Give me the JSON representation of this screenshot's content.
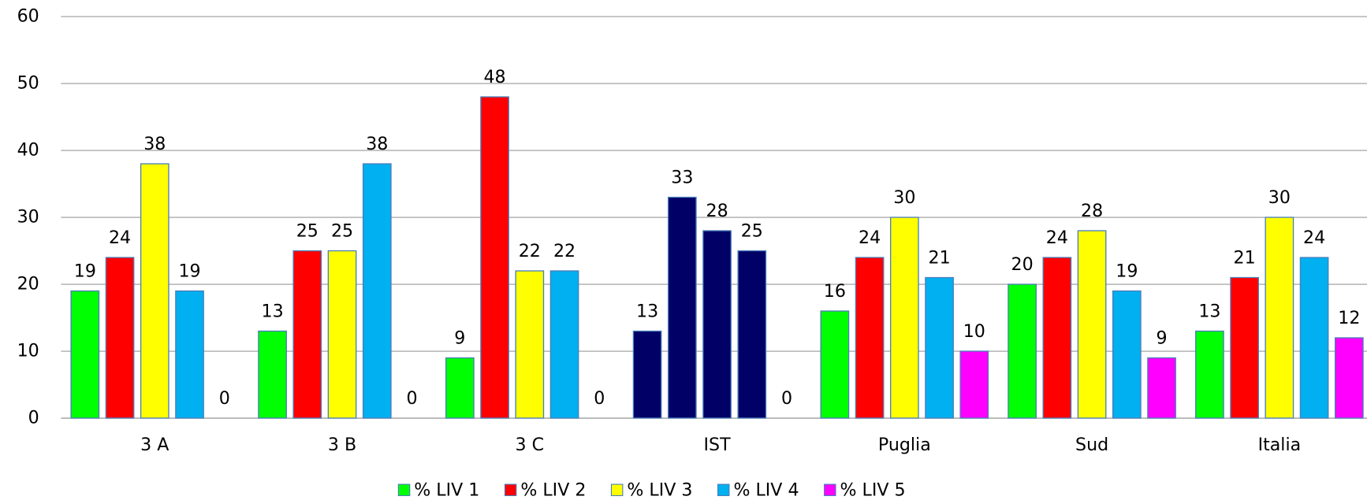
{
  "chart_data": {
    "type": "bar",
    "categories": [
      "3 A",
      "3 B",
      "3 C",
      "IST",
      "Puglia",
      "Sud",
      "Italia"
    ],
    "series": [
      {
        "name": "% LIV 1",
        "color": "#00ff00",
        "values": [
          19,
          13,
          9,
          13,
          16,
          20,
          13
        ]
      },
      {
        "name": "% LIV 2",
        "color": "#ff0000",
        "values": [
          24,
          25,
          48,
          33,
          24,
          24,
          21
        ]
      },
      {
        "name": "% LIV 3",
        "color": "#ffff00",
        "values": [
          38,
          25,
          22,
          28,
          30,
          28,
          30
        ]
      },
      {
        "name": "% LIV 4",
        "color": "#00b0f0",
        "values": [
          19,
          38,
          22,
          25,
          21,
          19,
          24
        ]
      },
      {
        "name": "% LIV 5",
        "color": "#ff00ff",
        "values": [
          0,
          0,
          0,
          0,
          10,
          9,
          12
        ]
      }
    ],
    "highlight": {
      "index": 3,
      "color": "#000066"
    },
    "ylim": [
      0,
      60
    ],
    "yticks": [
      0,
      10,
      20,
      30,
      40,
      50,
      60
    ],
    "grid": true,
    "legend": "bottom"
  }
}
